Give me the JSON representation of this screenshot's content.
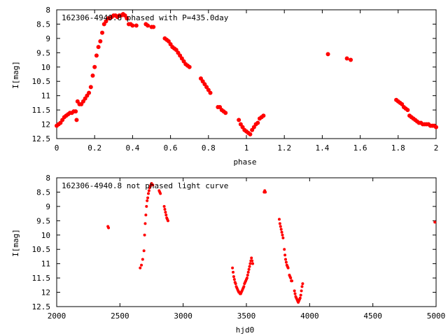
{
  "chart_data": [
    {
      "type": "scatter",
      "title": "162306-4940.8 phased with P=435.0day",
      "xlabel": "phase",
      "ylabel": "I[mag]",
      "xlim": [
        0,
        2
      ],
      "ylim": [
        12.5,
        8
      ],
      "y_inverted": true,
      "xticks": [
        "0",
        "0.2",
        "0.4",
        "0.6",
        "0.8",
        "1",
        "1.2",
        "1.4",
        "1.6",
        "1.8",
        "2"
      ],
      "yticks": [
        "8",
        "8.5",
        "9",
        "9.5",
        "10",
        "10.5",
        "11",
        "11.5",
        "12",
        "12.5"
      ],
      "color": "#ff0000",
      "x": [
        0.0,
        0.01,
        0.02,
        0.03,
        0.04,
        0.05,
        0.06,
        0.07,
        0.08,
        0.09,
        0.1,
        0.105,
        0.11,
        0.12,
        0.13,
        0.14,
        0.15,
        0.16,
        0.17,
        0.18,
        0.19,
        0.2,
        0.21,
        0.22,
        0.23,
        0.24,
        0.25,
        0.26,
        0.27,
        0.28,
        0.29,
        0.3,
        0.31,
        0.32,
        0.33,
        0.34,
        0.35,
        0.36,
        0.37,
        0.38,
        0.39,
        0.4,
        0.42,
        0.47,
        0.48,
        0.5,
        0.51,
        0.57,
        0.58,
        0.59,
        0.6,
        0.61,
        0.62,
        0.63,
        0.64,
        0.65,
        0.66,
        0.67,
        0.68,
        0.69,
        0.7,
        0.76,
        0.77,
        0.78,
        0.79,
        0.8,
        0.81,
        0.85,
        0.86,
        0.87,
        0.88,
        0.89,
        0.96,
        0.97,
        0.98,
        0.99,
        1.0,
        1.01,
        1.02,
        1.03,
        1.04,
        1.05,
        1.06,
        1.07,
        1.08,
        1.09,
        1.43,
        1.53,
        1.55,
        1.79,
        1.8,
        1.81,
        1.82,
        1.83,
        1.84,
        1.85,
        1.86,
        1.87,
        1.88,
        1.89,
        1.9,
        1.91,
        1.92,
        1.93,
        1.94,
        1.95,
        1.96,
        1.97,
        1.98,
        1.99,
        2.0
      ],
      "y": [
        12.05,
        12.0,
        11.95,
        11.85,
        11.75,
        11.7,
        11.65,
        11.6,
        11.6,
        11.55,
        11.55,
        11.85,
        11.2,
        11.3,
        11.3,
        11.2,
        11.1,
        11.0,
        10.9,
        10.7,
        10.3,
        10.0,
        9.6,
        9.3,
        9.1,
        8.8,
        8.5,
        8.4,
        8.3,
        8.3,
        8.25,
        8.2,
        8.2,
        8.25,
        8.2,
        8.2,
        8.15,
        8.2,
        8.3,
        8.5,
        8.5,
        8.55,
        8.55,
        8.5,
        8.55,
        8.6,
        8.6,
        9.0,
        9.05,
        9.1,
        9.2,
        9.3,
        9.35,
        9.4,
        9.5,
        9.6,
        9.7,
        9.8,
        9.9,
        9.95,
        10.0,
        10.4,
        10.5,
        10.6,
        10.7,
        10.8,
        10.9,
        11.4,
        11.4,
        11.5,
        11.55,
        11.6,
        11.85,
        12.0,
        12.1,
        12.2,
        12.25,
        12.3,
        12.35,
        12.2,
        12.1,
        12.0,
        11.95,
        11.8,
        11.75,
        11.7,
        9.55,
        9.7,
        9.75,
        11.15,
        11.2,
        11.25,
        11.3,
        11.4,
        11.45,
        11.5,
        11.7,
        11.75,
        11.8,
        11.85,
        11.9,
        11.95,
        11.95,
        12.0,
        12.0,
        12.0,
        12.0,
        12.05,
        12.05,
        12.05,
        12.1
      ]
    },
    {
      "type": "scatter",
      "title": "162306-4940.8 not phased light curve",
      "xlabel": "hjd0",
      "ylabel": "I[mag]",
      "xlim": [
        2000,
        5000
      ],
      "ylim": [
        12.5,
        8
      ],
      "y_inverted": true,
      "xticks": [
        "2000",
        "2500",
        "3000",
        "3500",
        "4000",
        "4500",
        "5000"
      ],
      "yticks": [
        "8",
        "8.5",
        "9",
        "9.5",
        "10",
        "10.5",
        "11",
        "11.5",
        "12",
        "12.5"
      ],
      "color": "#ff0000",
      "x": [
        2405,
        2410,
        2660,
        2670,
        2680,
        2690,
        2695,
        2700,
        2705,
        2710,
        2715,
        2720,
        2725,
        2730,
        2735,
        2740,
        2745,
        2750,
        2760,
        2810,
        2815,
        2820,
        2850,
        2855,
        2860,
        2865,
        2870,
        2875,
        2880,
        3390,
        3395,
        3400,
        3405,
        3410,
        3415,
        3420,
        3425,
        3430,
        3435,
        3440,
        3445,
        3450,
        3455,
        3460,
        3465,
        3470,
        3475,
        3480,
        3485,
        3490,
        3495,
        3500,
        3505,
        3510,
        3515,
        3520,
        3525,
        3530,
        3535,
        3540,
        3545,
        3550,
        3640,
        3645,
        3650,
        3760,
        3765,
        3770,
        3775,
        3780,
        3785,
        3790,
        3800,
        3805,
        3810,
        3815,
        3820,
        3825,
        3830,
        3840,
        3845,
        3850,
        3855,
        3860,
        3880,
        3885,
        3890,
        3895,
        3900,
        3905,
        3910,
        3915,
        3920,
        3925,
        3930,
        3935,
        3940,
        3945,
        4990
      ],
      "y": [
        9.7,
        9.75,
        11.15,
        11.05,
        10.85,
        10.55,
        10.0,
        9.6,
        9.3,
        9.0,
        8.8,
        8.7,
        8.55,
        8.45,
        8.35,
        8.3,
        8.25,
        8.2,
        8.25,
        8.45,
        8.5,
        8.55,
        9.0,
        9.1,
        9.2,
        9.3,
        9.4,
        9.45,
        9.5,
        11.15,
        11.3,
        11.45,
        11.55,
        11.65,
        11.7,
        11.8,
        11.85,
        11.9,
        11.95,
        12.0,
        12.0,
        12.05,
        12.05,
        12.0,
        11.95,
        11.9,
        11.85,
        11.8,
        11.7,
        11.65,
        11.6,
        11.55,
        11.5,
        11.4,
        11.3,
        11.2,
        11.1,
        11.0,
        10.9,
        10.8,
        10.9,
        11.0,
        8.5,
        8.45,
        8.5,
        9.45,
        9.6,
        9.7,
        9.8,
        9.9,
        10.0,
        10.1,
        10.5,
        10.7,
        10.85,
        10.95,
        11.05,
        11.1,
        11.15,
        11.4,
        11.45,
        11.5,
        11.6,
        11.6,
        11.95,
        12.05,
        12.15,
        12.2,
        12.25,
        12.3,
        12.35,
        12.3,
        12.25,
        12.2,
        12.1,
        11.95,
        11.8,
        11.7,
        9.55
      ]
    }
  ]
}
